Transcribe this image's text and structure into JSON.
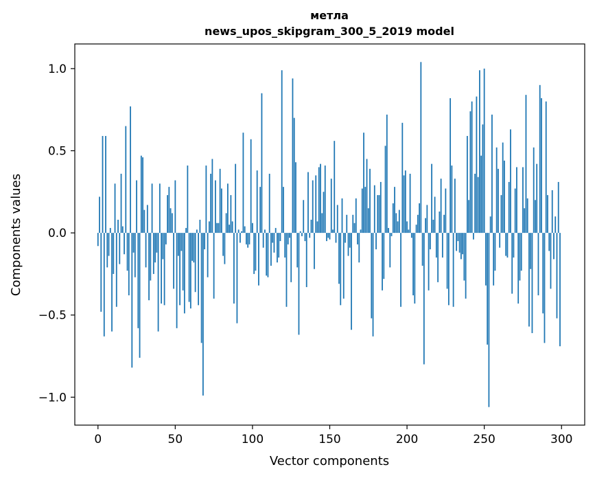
{
  "chart_data": {
    "type": "bar",
    "title": "метла",
    "subtitle": "news_upos_skipgram_300_5_2019 model",
    "xlabel": "Vector components",
    "ylabel": "Components values",
    "xlim": [
      -15,
      315
    ],
    "ylim": [
      -1.17,
      1.15
    ],
    "xticks": [
      0,
      50,
      100,
      150,
      200,
      250,
      300
    ],
    "xtick_labels": [
      "0",
      "50",
      "100",
      "150",
      "200",
      "250",
      "300"
    ],
    "yticks": [
      -1.0,
      -0.5,
      0.0,
      0.5,
      1.0
    ],
    "ytick_labels": [
      "−1.0",
      "−0.5",
      "0.0",
      "0.5",
      "1.0"
    ],
    "grid": false,
    "bar_color": "#1f77b4",
    "x": [
      0,
      1,
      2,
      3,
      4,
      5,
      6,
      7,
      8,
      9,
      10,
      11,
      12,
      13,
      14,
      15,
      16,
      17,
      18,
      19,
      20,
      21,
      22,
      23,
      24,
      25,
      26,
      27,
      28,
      29,
      30,
      31,
      32,
      33,
      34,
      35,
      36,
      37,
      38,
      39,
      40,
      41,
      42,
      43,
      44,
      45,
      46,
      47,
      48,
      49,
      50,
      51,
      52,
      53,
      54,
      55,
      56,
      57,
      58,
      59,
      60,
      61,
      62,
      63,
      64,
      65,
      66,
      67,
      68,
      69,
      70,
      71,
      72,
      73,
      74,
      75,
      76,
      77,
      78,
      79,
      80,
      81,
      82,
      83,
      84,
      85,
      86,
      87,
      88,
      89,
      90,
      91,
      92,
      93,
      94,
      95,
      96,
      97,
      98,
      99,
      100,
      101,
      102,
      103,
      104,
      105,
      106,
      107,
      108,
      109,
      110,
      111,
      112,
      113,
      114,
      115,
      116,
      117,
      118,
      119,
      120,
      121,
      122,
      123,
      124,
      125,
      126,
      127,
      128,
      129,
      130,
      131,
      132,
      133,
      134,
      135,
      136,
      137,
      138,
      139,
      140,
      141,
      142,
      143,
      144,
      145,
      146,
      147,
      148,
      149,
      150,
      151,
      152,
      153,
      154,
      155,
      156,
      157,
      158,
      159,
      160,
      161,
      162,
      163,
      164,
      165,
      166,
      167,
      168,
      169,
      170,
      171,
      172,
      173,
      174,
      175,
      176,
      177,
      178,
      179,
      180,
      181,
      182,
      183,
      184,
      185,
      186,
      187,
      188,
      189,
      190,
      191,
      192,
      193,
      194,
      195,
      196,
      197,
      198,
      199,
      200,
      201,
      202,
      203,
      204,
      205,
      206,
      207,
      208,
      209,
      210,
      211,
      212,
      213,
      214,
      215,
      216,
      217,
      218,
      219,
      220,
      221,
      222,
      223,
      224,
      225,
      226,
      227,
      228,
      229,
      230,
      231,
      232,
      233,
      234,
      235,
      236,
      237,
      238,
      239,
      240,
      241,
      242,
      243,
      244,
      245,
      246,
      247,
      248,
      249,
      250,
      251,
      252,
      253,
      254,
      255,
      256,
      257,
      258,
      259,
      260,
      261,
      262,
      263,
      264,
      265,
      266,
      267,
      268,
      269,
      270,
      271,
      272,
      273,
      274,
      275,
      276,
      277,
      278,
      279,
      280,
      281,
      282,
      283,
      284,
      285,
      286,
      287,
      288,
      289,
      290,
      291,
      292,
      293,
      294,
      295,
      296,
      297,
      298,
      299
    ],
    "values": [
      -0.08,
      0.22,
      -0.48,
      0.59,
      -0.63,
      0.59,
      -0.21,
      -0.14,
      0.03,
      -0.6,
      -0.25,
      0.3,
      -0.45,
      0.08,
      -0.19,
      0.36,
      0.04,
      -0.13,
      0.65,
      -0.23,
      -0.38,
      0.77,
      -0.82,
      -0.12,
      -0.27,
      0.32,
      -0.58,
      -0.76,
      0.47,
      0.46,
      0.14,
      -0.21,
      0.17,
      -0.41,
      -0.29,
      0.3,
      -0.25,
      -0.18,
      -0.12,
      -0.6,
      0.3,
      -0.43,
      -0.16,
      -0.44,
      -0.07,
      0.23,
      0.28,
      0.15,
      0.12,
      -0.34,
      0.32,
      -0.58,
      -0.14,
      -0.44,
      -0.11,
      -0.35,
      -0.49,
      0.03,
      0.41,
      -0.42,
      -0.46,
      -0.17,
      -0.18,
      -0.36,
      0.02,
      -0.44,
      0.08,
      -0.67,
      -0.99,
      -0.1,
      0.41,
      -0.27,
      0.07,
      0.36,
      0.45,
      -0.4,
      0.32,
      0.06,
      0.06,
      0.39,
      0.27,
      -0.14,
      -0.19,
      0.12,
      0.3,
      0.05,
      0.23,
      0.07,
      -0.43,
      0.42,
      -0.55,
      0.02,
      -0.06,
      0.01,
      0.61,
      0.04,
      -0.07,
      -0.09,
      -0.07,
      0.57,
      0.06,
      -0.25,
      -0.23,
      0.38,
      -0.32,
      0.28,
      0.85,
      -0.09,
      0.02,
      -0.26,
      -0.27,
      0.36,
      -0.2,
      -0.06,
      -0.12,
      0.03,
      -0.18,
      -0.15,
      -0.05,
      0.99,
      0.28,
      -0.15,
      -0.45,
      -0.07,
      -0.03,
      -0.3,
      0.94,
      0.7,
      0.43,
      -0.21,
      -0.62,
      0.01,
      -0.02,
      0.2,
      -0.05,
      -0.33,
      0.37,
      -0.03,
      0.08,
      0.32,
      -0.22,
      0.35,
      0.07,
      0.4,
      0.42,
      0.12,
      0.25,
      0.41,
      -0.05,
      -0.03,
      -0.04,
      0.33,
      0.02,
      0.56,
      -0.06,
      0.17,
      -0.31,
      -0.44,
      0.21,
      -0.4,
      -0.06,
      0.11,
      -0.14,
      -0.09,
      -0.59,
      0.11,
      0.06,
      0.21,
      -0.07,
      -0.18,
      0.02,
      0.27,
      0.61,
      0.28,
      0.45,
      0.15,
      0.39,
      -0.52,
      -0.63,
      0.29,
      -0.1,
      0.23,
      0.23,
      0.31,
      -0.35,
      -0.28,
      0.53,
      0.72,
      0.03,
      -0.21,
      -0.02,
      0.18,
      0.28,
      0.12,
      0.07,
      0.14,
      -0.45,
      0.67,
      0.35,
      0.38,
      0.07,
      0.02,
      0.36,
      -0.03,
      -0.38,
      -0.43,
      0.05,
      0.11,
      0.18,
      1.04,
      -0.2,
      -0.8,
      0.09,
      0.17,
      -0.35,
      -0.1,
      0.42,
      0.08,
      0.22,
      -0.15,
      -0.3,
      0.13,
      0.33,
      -0.15,
      0.11,
      0.27,
      -0.34,
      -0.44,
      0.82,
      0.41,
      -0.45,
      0.33,
      -0.11,
      -0.05,
      -0.12,
      -0.16,
      -0.13,
      -0.29,
      -0.4,
      0.59,
      0.2,
      0.74,
      0.8,
      -0.04,
      0.36,
      0.83,
      0.34,
      0.99,
      0.47,
      0.66,
      1.0,
      -0.32,
      -0.68,
      -1.06,
      0.1,
      0.72,
      -0.32,
      -0.23,
      0.52,
      0.39,
      -0.09,
      0.23,
      0.55,
      0.44,
      -0.14,
      -0.15,
      0.31,
      0.63,
      -0.37,
      -0.15,
      0.27,
      0.4,
      -0.43,
      -0.29,
      -0.23,
      0.4,
      0.15,
      0.84,
      0.21,
      -0.57,
      -0.22,
      -0.61,
      0.52,
      0.2,
      0.42,
      -0.38,
      0.9,
      0.82,
      -0.49,
      -0.67,
      0.8,
      0.23,
      -0.11,
      -0.34,
      0.26,
      -0.16,
      0.1,
      -0.52,
      0.31,
      -0.69
    ]
  }
}
